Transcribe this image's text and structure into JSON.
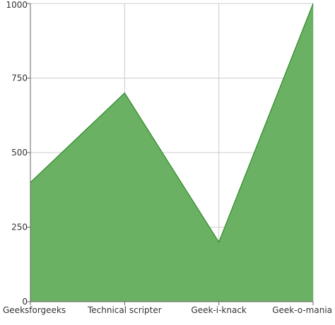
{
  "chart_data": {
    "type": "area",
    "categories": [
      "Geeksforgeeks",
      "Technical scripter",
      "Geek-i-knack",
      "Geek-o-mania"
    ],
    "series": [
      {
        "values": [
          400,
          700,
          200,
          1000
        ]
      }
    ],
    "y_ticks": [
      0,
      250,
      500,
      750,
      1000
    ],
    "ylim": [
      0,
      1000
    ],
    "grid": true,
    "legend": "none",
    "colors": {
      "fill": "#6ab163",
      "stroke": "#2f8a29",
      "grid": "#cccccc",
      "axis": "#666666"
    }
  }
}
